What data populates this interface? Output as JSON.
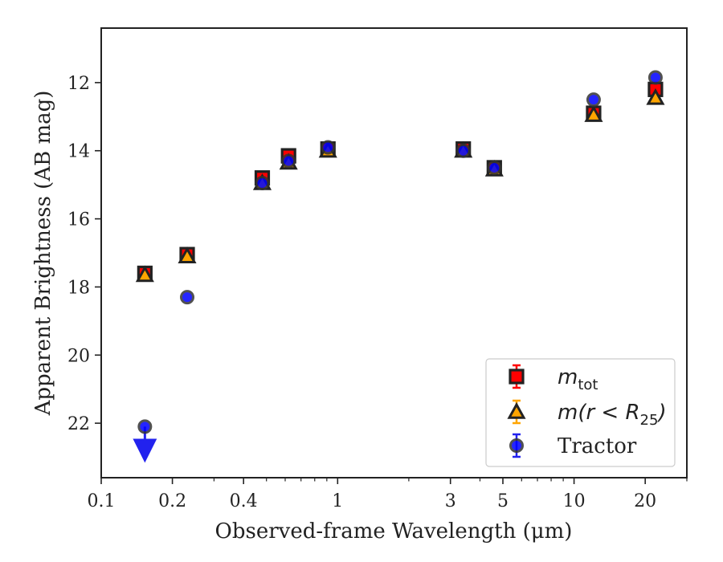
{
  "chart_data": {
    "type": "scatter",
    "xlabel": "Observed-frame Wavelength (μm)",
    "ylabel": "Apparent Brightness (AB mag)",
    "x_scale": "log",
    "xlim": [
      0.1,
      30
    ],
    "ylim": [
      23.6,
      10.4
    ],
    "y_inverted": true,
    "x_ticks": [
      0.1,
      0.2,
      0.4,
      1,
      3,
      5,
      10,
      20
    ],
    "x_tick_labels": [
      "0.1",
      "0.2",
      "0.4",
      "1",
      "3",
      "5",
      "10",
      "20"
    ],
    "y_ticks": [
      12,
      14,
      16,
      18,
      20,
      22
    ],
    "y_tick_labels": [
      "12",
      "14",
      "16",
      "18",
      "20",
      "22"
    ],
    "grid": false,
    "legend_position": "lower-right",
    "series": [
      {
        "name": "m_tot",
        "legend_main": "m",
        "legend_sub": "tot",
        "marker": "square",
        "color": "#ff0000",
        "edge": "#222222",
        "x": [
          0.153,
          0.231,
          0.48,
          0.62,
          0.91,
          3.4,
          4.6,
          12.1,
          22.1
        ],
        "y": [
          17.6,
          17.05,
          14.8,
          14.15,
          13.95,
          13.95,
          14.5,
          12.9,
          12.2
        ]
      },
      {
        "name": "m(r < R_25)",
        "legend_main": "m(r < R",
        "legend_sub": "25",
        "legend_tail": ")",
        "marker": "triangle",
        "color": "#ffa500",
        "edge": "#222222",
        "x": [
          0.153,
          0.231,
          0.48,
          0.62,
          0.91,
          3.4,
          4.6,
          12.1,
          22.1
        ],
        "y": [
          17.65,
          17.1,
          14.95,
          14.35,
          14.0,
          14.0,
          14.55,
          12.95,
          12.45
        ]
      },
      {
        "name": "Tractor",
        "legend_main": "Tractor",
        "marker": "circle",
        "color": "#0000ff",
        "edge": "#333333",
        "x": [
          0.153,
          0.231,
          0.48,
          0.62,
          0.91,
          3.4,
          4.6,
          12.1,
          22.1
        ],
        "y": [
          22.1,
          18.3,
          14.95,
          14.3,
          13.9,
          14.0,
          14.5,
          12.5,
          11.85
        ],
        "upper_limit": [
          true,
          false,
          false,
          false,
          false,
          false,
          false,
          false,
          false
        ]
      }
    ]
  }
}
